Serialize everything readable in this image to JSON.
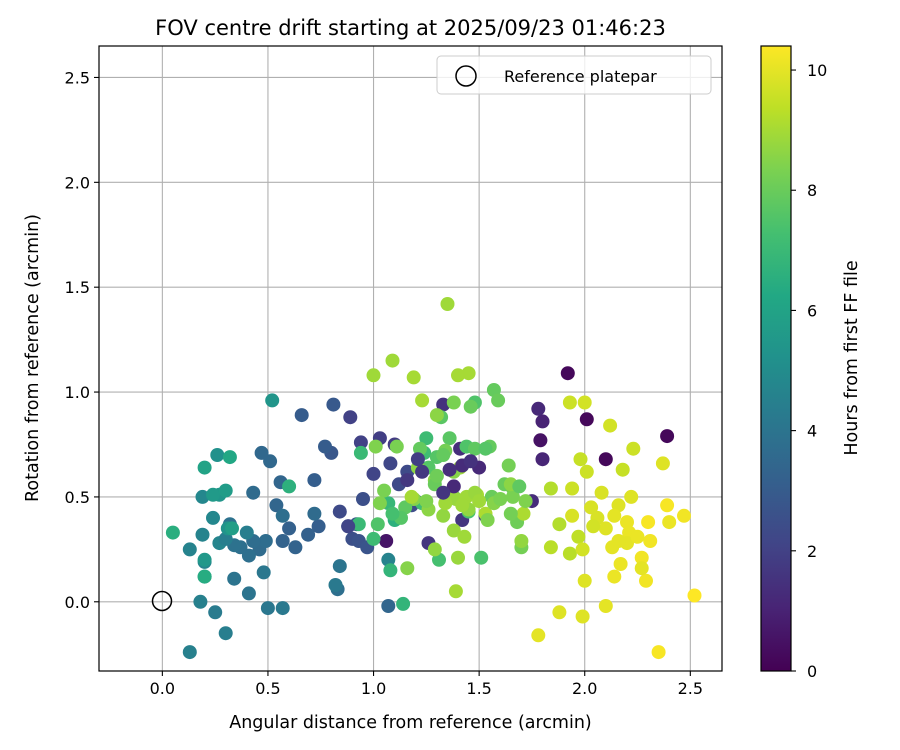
{
  "chart_data": {
    "type": "scatter",
    "title": "FOV centre drift starting at 2025/09/23 01:46:23",
    "xlabel": "Angular distance from reference (arcmin)",
    "ylabel": "Rotation from reference (arcmin)",
    "xlim": [
      -0.3,
      2.65
    ],
    "ylim": [
      -0.33,
      2.65
    ],
    "xticks": [
      "0.0",
      "0.5",
      "1.0",
      "1.5",
      "2.0",
      "2.5"
    ],
    "xtick_values": [
      0.0,
      0.5,
      1.0,
      1.5,
      2.0,
      2.5
    ],
    "yticks": [
      "0.0",
      "0.5",
      "1.0",
      "1.5",
      "2.0",
      "2.5"
    ],
    "ytick_values": [
      0.0,
      0.5,
      1.0,
      1.5,
      2.0,
      2.5
    ],
    "grid": true,
    "legend": {
      "position": "top-right",
      "label": "Reference platepar"
    },
    "reference_point": {
      "x": 0.0,
      "y": 0.0
    },
    "colorbar": {
      "label": "Hours from first FF file",
      "range": [
        0,
        10.4
      ],
      "ticks": [
        "0",
        "2",
        "4",
        "6",
        "8",
        "10"
      ],
      "tick_values": [
        0,
        2,
        4,
        6,
        8,
        10
      ],
      "colormap": "viridis"
    },
    "points": [
      [
        1.92,
        1.09,
        0.2
      ],
      [
        2.1,
        0.68,
        0.2
      ],
      [
        2.01,
        0.87,
        0.2
      ],
      [
        2.39,
        0.79,
        0.2
      ],
      [
        1.79,
        0.77,
        0.5
      ],
      [
        1.06,
        0.29,
        0.6
      ],
      [
        1.8,
        0.86,
        1.0
      ],
      [
        1.8,
        0.68,
        1.1
      ],
      [
        1.78,
        0.92,
        1.2
      ],
      [
        1.75,
        0.48,
        1.3
      ],
      [
        1.41,
        0.73,
        1.4
      ],
      [
        1.33,
        0.94,
        1.5
      ],
      [
        1.42,
        0.39,
        1.6
      ],
      [
        1.26,
        0.28,
        1.6
      ],
      [
        1.53,
        0.41,
        1.7
      ],
      [
        1.1,
        0.75,
        1.8
      ],
      [
        1.03,
        0.78,
        1.9
      ],
      [
        0.89,
        0.88,
        2.0
      ],
      [
        0.94,
        0.76,
        2.0
      ],
      [
        1.0,
        0.61,
        2.1
      ],
      [
        1.08,
        0.66,
        2.2
      ],
      [
        1.12,
        0.56,
        2.3
      ],
      [
        1.16,
        0.62,
        2.3
      ],
      [
        1.18,
        0.46,
        2.4
      ],
      [
        1.2,
        0.48,
        2.4
      ],
      [
        0.95,
        0.49,
        2.5
      ],
      [
        0.9,
        0.3,
        2.5
      ],
      [
        0.93,
        0.29,
        2.6
      ],
      [
        0.97,
        0.26,
        2.7
      ],
      [
        0.92,
        0.37,
        2.7
      ],
      [
        0.88,
        0.36,
        2.8
      ],
      [
        0.8,
        0.71,
        2.8
      ],
      [
        0.81,
        0.94,
        2.9
      ],
      [
        0.77,
        0.74,
        3.0
      ],
      [
        0.66,
        0.89,
        3.0
      ],
      [
        0.72,
        0.58,
        3.1
      ],
      [
        0.74,
        0.36,
        3.1
      ],
      [
        0.69,
        0.32,
        3.2
      ],
      [
        0.6,
        0.35,
        3.2
      ],
      [
        0.63,
        0.26,
        3.3
      ],
      [
        0.57,
        0.29,
        3.3
      ],
      [
        0.54,
        0.46,
        3.4
      ],
      [
        0.56,
        0.57,
        3.4
      ],
      [
        0.51,
        0.67,
        3.5
      ],
      [
        0.47,
        0.71,
        3.5
      ],
      [
        0.43,
        0.52,
        3.6
      ],
      [
        0.46,
        0.25,
        3.6
      ],
      [
        0.49,
        0.29,
        3.7
      ],
      [
        0.43,
        0.29,
        3.7
      ],
      [
        0.41,
        0.22,
        3.8
      ],
      [
        0.37,
        0.26,
        3.8
      ],
      [
        0.34,
        0.27,
        3.9
      ],
      [
        0.32,
        0.37,
        3.9
      ],
      [
        0.34,
        0.11,
        4.0
      ],
      [
        0.41,
        0.04,
        4.0
      ],
      [
        0.48,
        0.14,
        4.1
      ],
      [
        0.5,
        -0.03,
        4.1
      ],
      [
        0.57,
        -0.03,
        4.2
      ],
      [
        0.25,
        -0.05,
        4.3
      ],
      [
        0.3,
        -0.15,
        4.4
      ],
      [
        0.13,
        -0.24,
        4.5
      ],
      [
        0.18,
        0.0,
        4.5
      ],
      [
        0.19,
        0.32,
        4.6
      ],
      [
        0.13,
        0.25,
        4.6
      ],
      [
        0.2,
        0.19,
        4.7
      ],
      [
        0.27,
        0.28,
        4.7
      ],
      [
        0.24,
        0.4,
        4.8
      ],
      [
        0.19,
        0.5,
        4.8
      ],
      [
        0.2,
        0.12,
        4.9
      ],
      [
        0.83,
        0.06,
        3.8
      ],
      [
        1.07,
        -0.02,
        3.4
      ],
      [
        0.84,
        0.17,
        4.0
      ],
      [
        0.82,
        0.08,
        4.2
      ],
      [
        1.07,
        0.2,
        4.6
      ],
      [
        0.57,
        0.41,
        3.8
      ],
      [
        0.72,
        0.42,
        3.6
      ],
      [
        0.4,
        0.33,
        4.4
      ],
      [
        0.3,
        0.3,
        4.4
      ],
      [
        0.26,
        0.7,
        5.2
      ],
      [
        0.31,
        0.35,
        5.3
      ],
      [
        0.27,
        0.51,
        5.4
      ],
      [
        0.52,
        0.96,
        5.4
      ],
      [
        0.2,
        0.2,
        5.5
      ],
      [
        0.24,
        0.51,
        5.6
      ],
      [
        0.3,
        0.53,
        5.7
      ],
      [
        0.33,
        0.35,
        5.8
      ],
      [
        0.2,
        0.64,
        6.0
      ],
      [
        0.32,
        0.69,
        6.2
      ],
      [
        0.05,
        0.33,
        6.5
      ],
      [
        0.2,
        0.12,
        6.4
      ],
      [
        0.6,
        0.55,
        6.6
      ],
      [
        1.1,
        0.39,
        6.6
      ],
      [
        1.08,
        0.15,
        6.8
      ],
      [
        1.14,
        -0.01,
        6.8
      ],
      [
        1.07,
        0.47,
        6.9
      ],
      [
        0.93,
        0.37,
        7.0
      ],
      [
        0.94,
        0.71,
        7.0
      ],
      [
        1.0,
        0.3,
        7.1
      ],
      [
        1.25,
        0.78,
        7.1
      ],
      [
        1.24,
        0.71,
        7.2
      ],
      [
        1.23,
        0.47,
        7.2
      ],
      [
        1.31,
        0.2,
        7.3
      ],
      [
        1.38,
        0.5,
        7.3
      ],
      [
        1.45,
        0.43,
        7.4
      ],
      [
        1.51,
        0.21,
        7.4
      ],
      [
        1.48,
        0.95,
        7.5
      ],
      [
        1.44,
        0.74,
        7.5
      ],
      [
        1.26,
        0.64,
        7.6
      ],
      [
        1.3,
        0.69,
        7.6
      ],
      [
        1.32,
        0.88,
        7.7
      ],
      [
        1.36,
        0.78,
        7.7
      ],
      [
        1.42,
        0.65,
        7.8
      ],
      [
        1.48,
        0.73,
        7.8
      ],
      [
        1.55,
        0.74,
        7.9
      ],
      [
        1.57,
        1.01,
        7.9
      ],
      [
        1.59,
        0.96,
        8.0
      ],
      [
        1.56,
        0.5,
        8.0
      ],
      [
        1.62,
        0.56,
        8.0
      ],
      [
        1.66,
        0.54,
        8.1
      ],
      [
        1.68,
        0.38,
        8.1
      ],
      [
        1.7,
        0.26,
        8.2
      ],
      [
        1.64,
        0.65,
        8.2
      ],
      [
        1.11,
        0.74,
        8.3
      ],
      [
        1.05,
        0.53,
        8.3
      ],
      [
        1.03,
        0.47,
        8.4
      ],
      [
        1.01,
        0.74,
        8.4
      ],
      [
        1.16,
        0.16,
        8.5
      ],
      [
        1.19,
        0.49,
        8.5
      ],
      [
        1.21,
        0.64,
        8.6
      ],
      [
        1.26,
        0.44,
        8.6
      ],
      [
        1.29,
        0.25,
        8.7
      ],
      [
        1.33,
        0.41,
        8.7
      ],
      [
        1.38,
        0.34,
        8.8
      ],
      [
        1.4,
        0.21,
        8.8
      ],
      [
        1.41,
        0.64,
        8.9
      ],
      [
        1.43,
        0.31,
        8.9
      ],
      [
        1.35,
        1.42,
        8.9
      ],
      [
        1.0,
        1.08,
        8.9
      ],
      [
        1.09,
        1.15,
        8.9
      ],
      [
        1.19,
        1.07,
        9.0
      ],
      [
        1.23,
        0.96,
        9.0
      ],
      [
        1.39,
        0.05,
        9.0
      ],
      [
        1.45,
        1.09,
        9.0
      ],
      [
        1.4,
        1.08,
        9.0
      ],
      [
        1.49,
        0.51,
        9.0
      ],
      [
        1.53,
        0.42,
        9.1
      ],
      [
        1.71,
        0.42,
        9.1
      ],
      [
        1.84,
        0.54,
        9.2
      ],
      [
        1.88,
        0.37,
        9.2
      ],
      [
        1.84,
        0.26,
        9.3
      ],
      [
        1.93,
        0.23,
        9.3
      ],
      [
        1.97,
        0.31,
        9.4
      ],
      [
        1.98,
        0.68,
        9.5
      ],
      [
        1.93,
        0.95,
        9.6
      ],
      [
        2.0,
        0.95,
        9.7
      ],
      [
        1.99,
        0.25,
        9.7
      ],
      [
        2.03,
        0.45,
        9.8
      ],
      [
        2.06,
        0.4,
        9.8
      ],
      [
        2.08,
        0.52,
        9.8
      ],
      [
        2.0,
        0.1,
        9.9
      ],
      [
        1.99,
        -0.07,
        9.9
      ],
      [
        1.88,
        -0.05,
        9.9
      ],
      [
        1.78,
        -0.16,
        10.0
      ],
      [
        2.1,
        -0.02,
        10.0
      ],
      [
        2.12,
        0.84,
        9.7
      ],
      [
        2.1,
        0.35,
        9.9
      ],
      [
        2.13,
        0.26,
        10.0
      ],
      [
        2.14,
        0.12,
        10.1
      ],
      [
        2.17,
        0.18,
        10.1
      ],
      [
        2.2,
        0.38,
        10.1
      ],
      [
        2.21,
        0.33,
        10.1
      ],
      [
        2.18,
        0.63,
        9.5
      ],
      [
        2.23,
        0.73,
        9.6
      ],
      [
        2.27,
        0.21,
        10.2
      ],
      [
        2.31,
        0.29,
        10.2
      ],
      [
        2.29,
        0.1,
        10.2
      ],
      [
        2.3,
        0.38,
        10.3
      ],
      [
        2.35,
        -0.24,
        10.3
      ],
      [
        2.39,
        0.46,
        10.3
      ],
      [
        2.52,
        0.03,
        10.4
      ],
      [
        2.47,
        0.41,
        10.2
      ],
      [
        2.37,
        0.66,
        9.9
      ],
      [
        2.27,
        0.16,
        10.0
      ],
      [
        2.2,
        0.28,
        10.0
      ],
      [
        2.16,
        0.46,
        9.9
      ],
      [
        2.01,
        0.62,
        9.6
      ],
      [
        2.04,
        0.36,
        9.7
      ],
      [
        1.94,
        0.41,
        9.8
      ],
      [
        1.94,
        0.54,
        9.6
      ],
      [
        2.22,
        0.5,
        9.9
      ],
      [
        2.14,
        0.41,
        10.0
      ],
      [
        2.16,
        0.29,
        10.0
      ],
      [
        2.4,
        0.38,
        10.1
      ],
      [
        2.25,
        0.31,
        10.1
      ],
      [
        1.66,
        0.5,
        8.3
      ],
      [
        1.72,
        0.48,
        8.4
      ],
      [
        1.65,
        0.42,
        8.2
      ],
      [
        1.57,
        0.47,
        8.5
      ],
      [
        1.53,
        0.73,
        7.6
      ],
      [
        1.54,
        0.39,
        8.4
      ],
      [
        1.46,
        0.93,
        8.0
      ],
      [
        1.38,
        0.95,
        8.3
      ],
      [
        1.3,
        0.89,
        8.6
      ],
      [
        1.34,
        0.72,
        8.2
      ],
      [
        1.29,
        0.58,
        8.6
      ],
      [
        1.36,
        0.52,
        8.8
      ],
      [
        1.39,
        0.49,
        8.8
      ],
      [
        1.45,
        0.44,
        8.7
      ],
      [
        1.22,
        0.73,
        7.9
      ],
      [
        1.15,
        0.45,
        7.8
      ],
      [
        1.13,
        0.4,
        7.6
      ],
      [
        1.09,
        0.42,
        7.3
      ],
      [
        1.02,
        0.37,
        7.5
      ],
      [
        1.25,
        0.48,
        8.4
      ],
      [
        1.29,
        0.56,
        8.0
      ],
      [
        1.33,
        0.7,
        7.9
      ],
      [
        1.3,
        0.6,
        8.1
      ],
      [
        1.44,
        0.5,
        8.9
      ],
      [
        1.48,
        0.52,
        8.8
      ],
      [
        1.5,
        0.48,
        8.9
      ],
      [
        1.42,
        0.46,
        8.9
      ],
      [
        1.38,
        0.62,
        8.5
      ],
      [
        1.34,
        0.47,
        8.9
      ],
      [
        1.18,
        0.5,
        9.0
      ],
      [
        1.6,
        0.49,
        8.3
      ],
      [
        1.65,
        0.56,
        8.6
      ],
      [
        1.7,
        0.29,
        8.7
      ],
      [
        1.69,
        0.55,
        7.8
      ],
      [
        1.5,
        0.64,
        1.2
      ],
      [
        1.42,
        0.65,
        1.3
      ],
      [
        1.46,
        0.67,
        1.5
      ],
      [
        1.23,
        0.62,
        1.7
      ],
      [
        1.16,
        0.58,
        1.7
      ],
      [
        1.21,
        0.68,
        1.9
      ],
      [
        1.36,
        0.63,
        1.4
      ],
      [
        1.38,
        0.55,
        1.2
      ],
      [
        1.33,
        0.52,
        1.6
      ],
      [
        0.84,
        0.43,
        2.3
      ],
      [
        0.88,
        0.36,
        2.1
      ]
    ]
  }
}
